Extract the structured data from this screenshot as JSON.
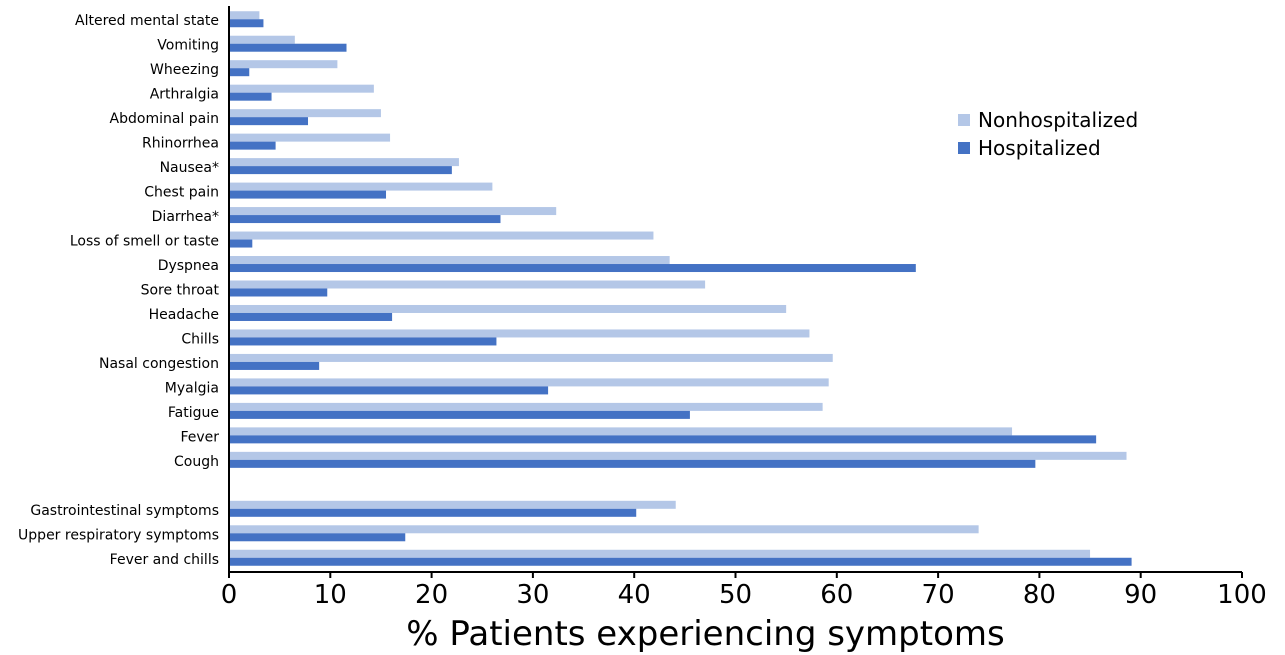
{
  "chart_data": {
    "type": "bar",
    "orientation": "horizontal",
    "title": "",
    "xlabel": "% Patients experiencing symptoms",
    "ylabel": "",
    "xlim": [
      0,
      100
    ],
    "xticks": [
      "0",
      "10",
      "20",
      "30",
      "40",
      "50",
      "60",
      "70",
      "80",
      "90",
      "100"
    ],
    "grid": false,
    "legend_position": "right",
    "categories": [
      "Altered mental state",
      "Vomiting",
      "Wheezing",
      "Arthralgia",
      "Abdominal pain",
      "Rhinorrhea",
      "Nausea*",
      "Chest pain",
      "Diarrhea*",
      "Loss of smell or taste",
      "Dyspnea",
      "Sore throat",
      "Headache",
      "Chills",
      "Nasal congestion",
      "Myalgia",
      "Fatigue",
      "Fever",
      "Cough",
      "",
      "Gastrointestinal symptoms",
      "Upper respiratory symptoms",
      "Fever and chills"
    ],
    "series": [
      {
        "name": "Nonhospitalized",
        "color": "#b4c7e7",
        "values": [
          3,
          6.5,
          10.7,
          14.3,
          15,
          15.9,
          22.7,
          26,
          32.3,
          41.9,
          43.5,
          47,
          55,
          57.3,
          59.6,
          59.2,
          58.6,
          77.3,
          88.6,
          null,
          44.1,
          74,
          85
        ]
      },
      {
        "name": "Hospitalized",
        "color": "#4472c4",
        "values": [
          3.4,
          11.6,
          2,
          4.2,
          7.8,
          4.6,
          22,
          15.5,
          26.8,
          2.3,
          67.8,
          9.7,
          16.1,
          26.4,
          8.9,
          31.5,
          45.5,
          85.6,
          79.6,
          null,
          40.2,
          17.4,
          89.1
        ]
      }
    ]
  }
}
